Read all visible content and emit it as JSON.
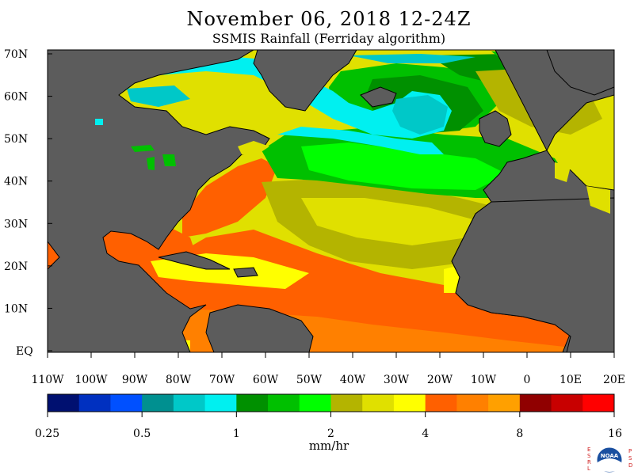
{
  "title": "November 06, 2018 12-24Z",
  "subtitle": "SSMIS Rainfall (Ferriday algorithm)",
  "map": {
    "lat_labels": [
      "70N",
      "60N",
      "50N",
      "40N",
      "30N",
      "20N",
      "10N",
      "EQ"
    ],
    "lon_labels": [
      "110W",
      "100W",
      "90W",
      "80W",
      "70W",
      "60W",
      "50W",
      "40W",
      "30W",
      "20W",
      "10W",
      "0",
      "10E",
      "20E"
    ],
    "land_color": "#5c5c5c"
  },
  "colorbar": {
    "colors": [
      "#001070",
      "#0030c0",
      "#0050ff",
      "#009090",
      "#00c8c8",
      "#00f0f0",
      "#009000",
      "#00c000",
      "#00ff00",
      "#b4b400",
      "#e0e000",
      "#ffff00",
      "#ff6000",
      "#ff8000",
      "#ffa000",
      "#900000",
      "#c80000",
      "#ff0000"
    ],
    "tick_labels": [
      "0.25",
      "0.5",
      "1",
      "2",
      "4",
      "8",
      "16"
    ],
    "units": "mm/hr"
  },
  "logo": {
    "left_letters": "ESRL",
    "right_letters": "PSD",
    "center_text": "NOAA"
  }
}
